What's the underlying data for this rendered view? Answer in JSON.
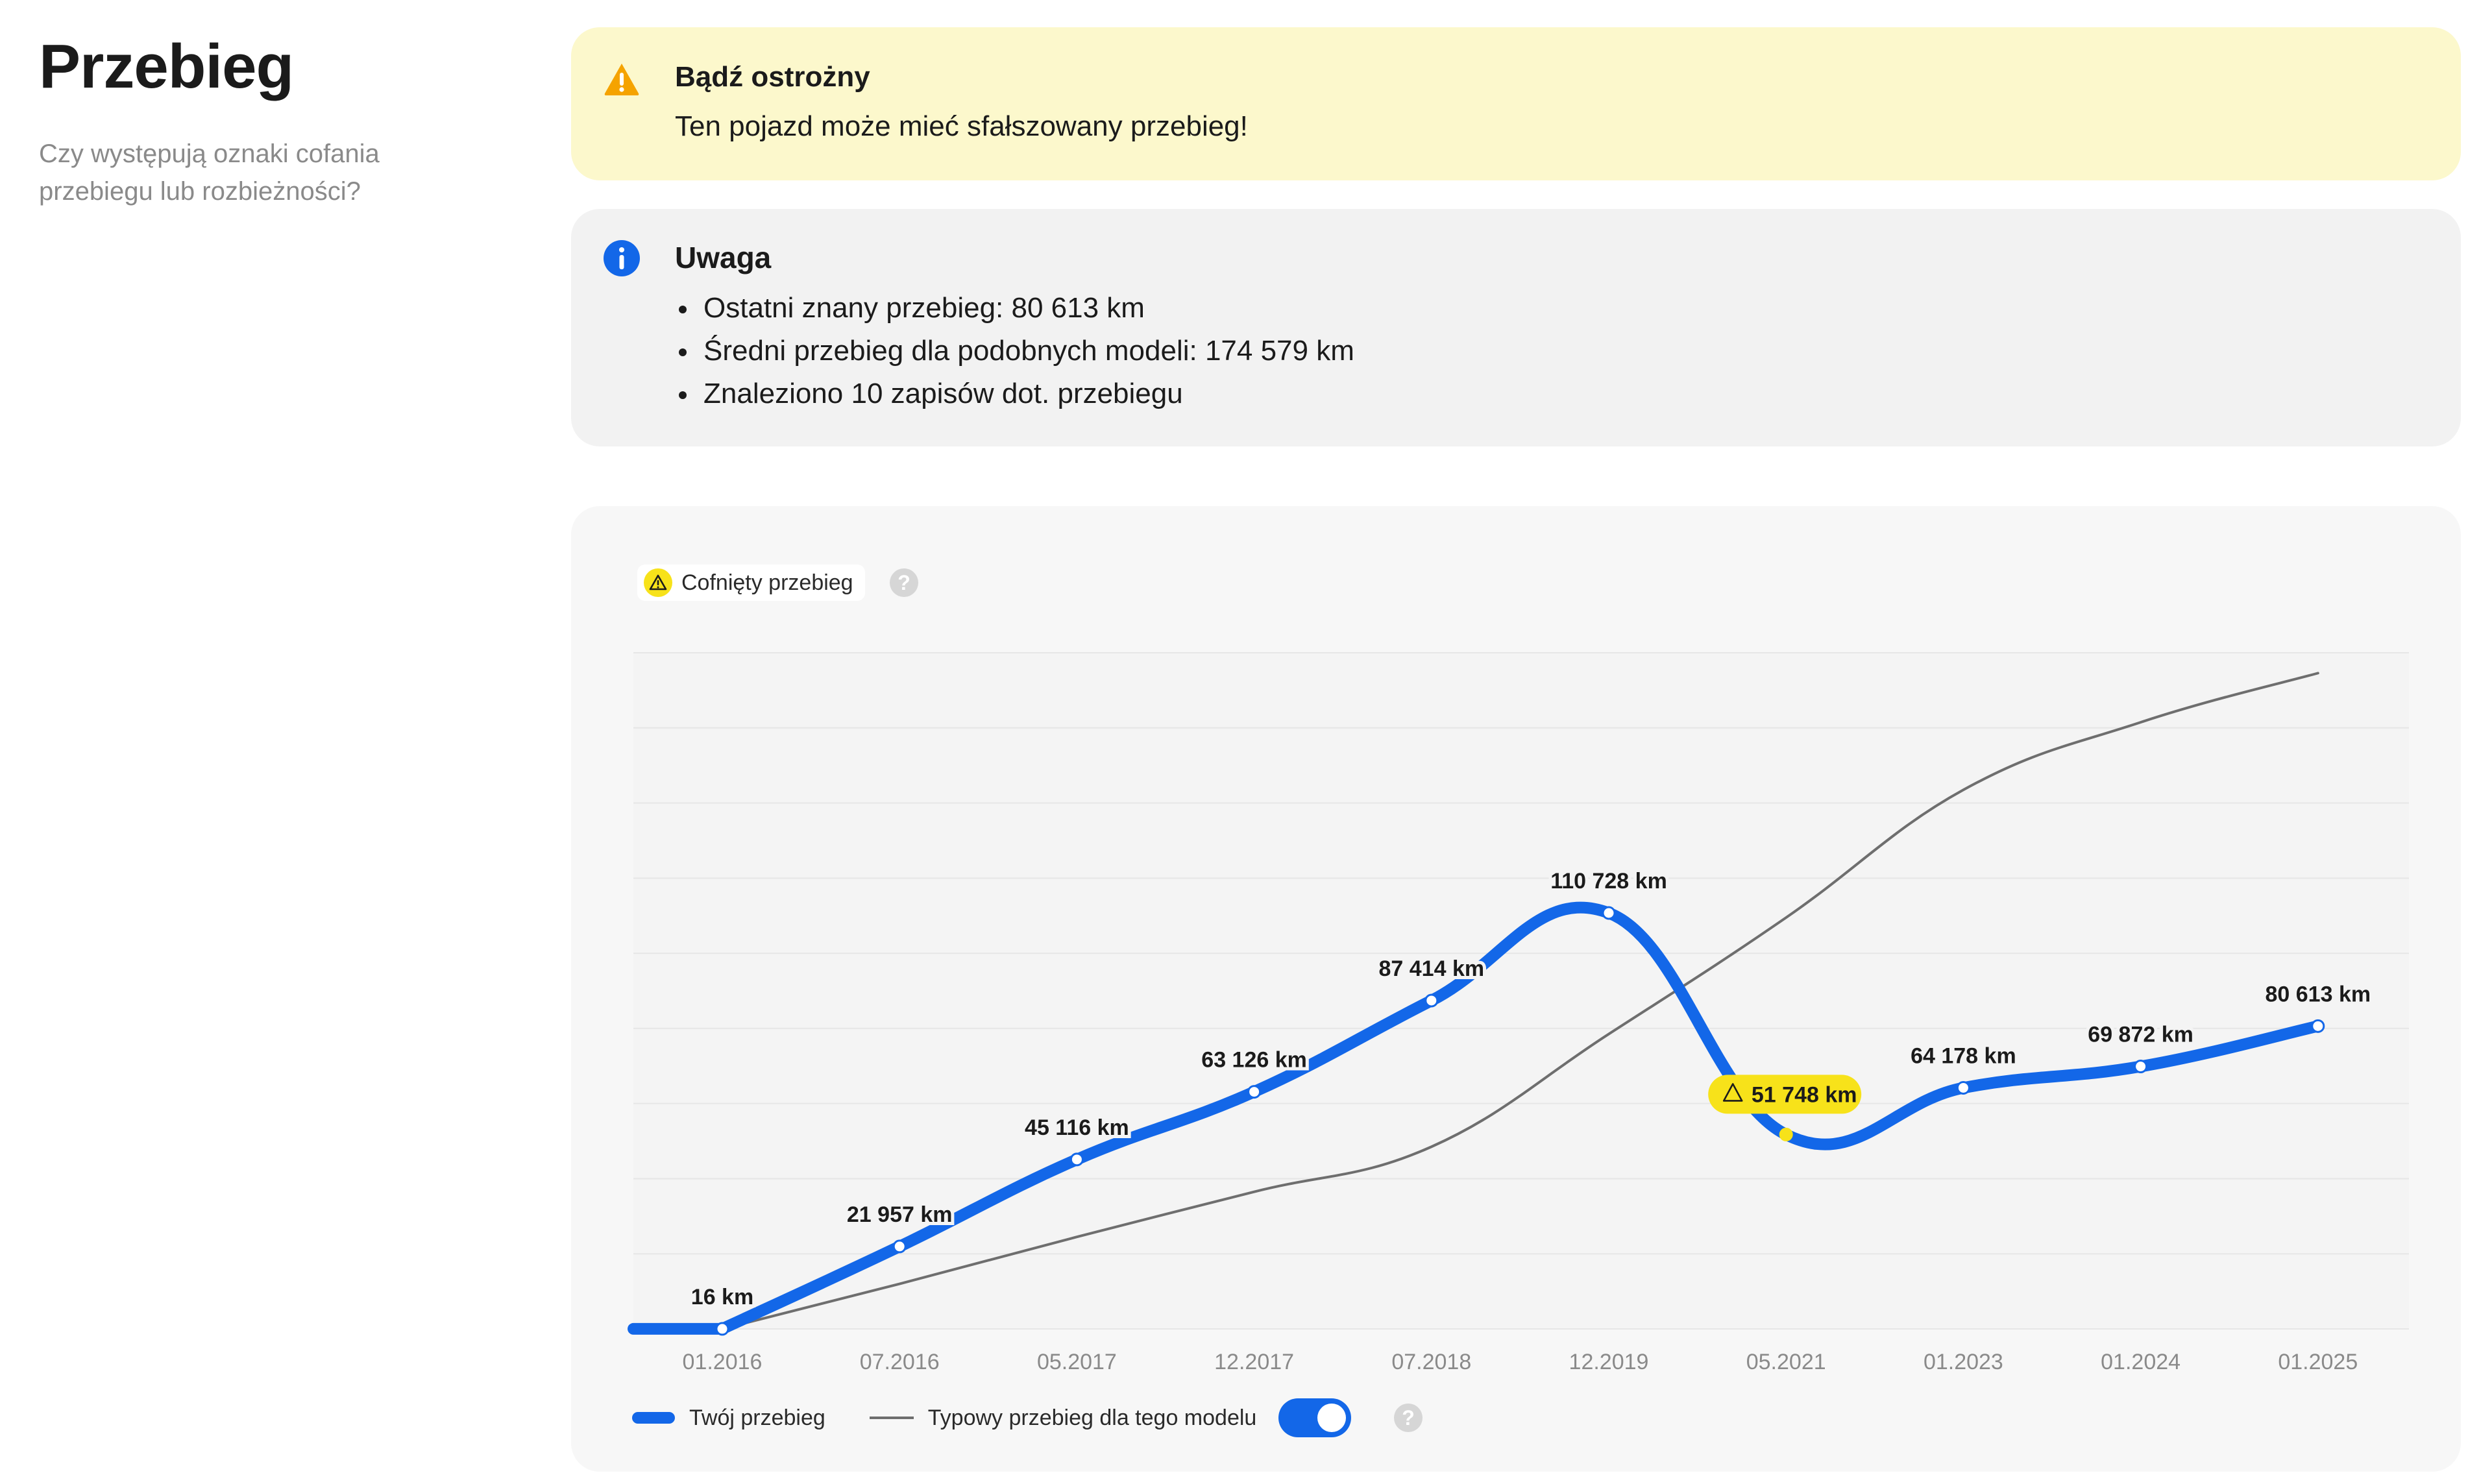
{
  "section": {
    "title": "Przebieg",
    "subtitle": "Czy występują oznaki cofania przebiegu lub rozbieżności?"
  },
  "warning": {
    "title": "Bądź ostrożny",
    "text": "Ten pojazd może mieć sfałszowany przebieg!",
    "icon": "warning-triangle-icon",
    "color": "#fcf8cc"
  },
  "info": {
    "title": "Uwaga",
    "icon": "info-icon",
    "items": [
      "Ostatni znany przebieg: 80 613 km",
      "Średni przebieg dla podobnych modeli: 174 579 km",
      "Znaleziono 10 zapisów dot. przebiegu"
    ]
  },
  "chart_controls": {
    "rollback_tag": "Cofnięty przebieg",
    "legend_own": "Twój przebieg",
    "legend_typical": "Typowy przebieg dla tego modelu",
    "toggle_on": true
  },
  "chart_data": {
    "type": "line",
    "title": "",
    "xlabel": "",
    "ylabel": "",
    "ylim": [
      0,
      180000
    ],
    "grid": true,
    "categories": [
      "01.2016",
      "07.2016",
      "05.2017",
      "12.2017",
      "07.2018",
      "12.2019",
      "05.2021",
      "01.2023",
      "01.2024",
      "01.2025"
    ],
    "series": [
      {
        "name": "Twój przebieg",
        "color": "#1367e8",
        "values": [
          16,
          21957,
          45116,
          63126,
          87414,
          110728,
          51748,
          64178,
          69872,
          80613
        ],
        "labels": [
          "16 km",
          "21 957 km",
          "45 116 km",
          "63 126 km",
          "87 414 km",
          "110 728 km",
          "51 748 km",
          "64 178 km",
          "69 872 km",
          "80 613 km"
        ],
        "rollback_index": 6
      },
      {
        "name": "Typowy przebieg dla tego modelu",
        "color": "#6e6e6e",
        "values": [
          0,
          12000,
          24500,
          36500,
          48500,
          78500,
          109500,
          143500,
          161500,
          174579
        ]
      }
    ],
    "highlight_color": "#f7e21a",
    "legend_placement": "bottom-left"
  }
}
